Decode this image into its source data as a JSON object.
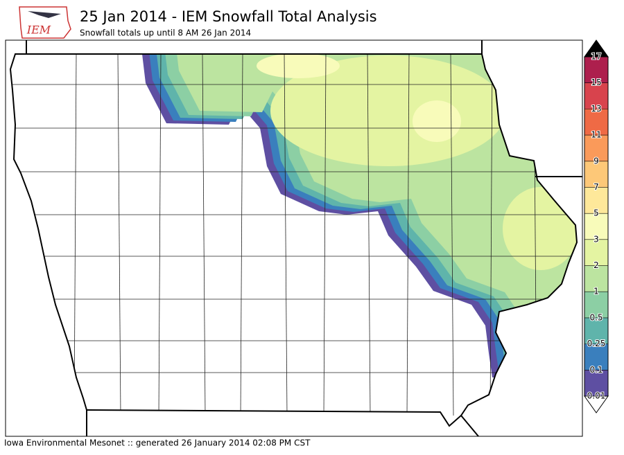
{
  "logo": {
    "text": "IEM"
  },
  "header": {
    "title": "25 Jan 2014 - IEM Snowfall Total Analysis",
    "subtitle": "Snowfall totals up until 8 AM 26 Jan 2014"
  },
  "footer": {
    "text": "Iowa Environmental Mesonet :: generated 26 January 2014 02:08 PM CST"
  },
  "colorbar": {
    "levels": [
      0.01,
      0.1,
      0.25,
      0.5,
      1,
      2,
      3,
      5,
      7,
      9,
      11,
      13,
      15,
      17
    ],
    "colors": [
      "#5e4fa2",
      "#3a7fbd",
      "#5fb4ab",
      "#8ccfa4",
      "#bce4a0",
      "#e4f4a2",
      "#f8fbba",
      "#fee89a",
      "#fdc878",
      "#fa9a5a",
      "#ef6a45",
      "#d8434d",
      "#ad1f4d"
    ],
    "over_color": "#000000",
    "under_color": "#ffffff"
  }
}
